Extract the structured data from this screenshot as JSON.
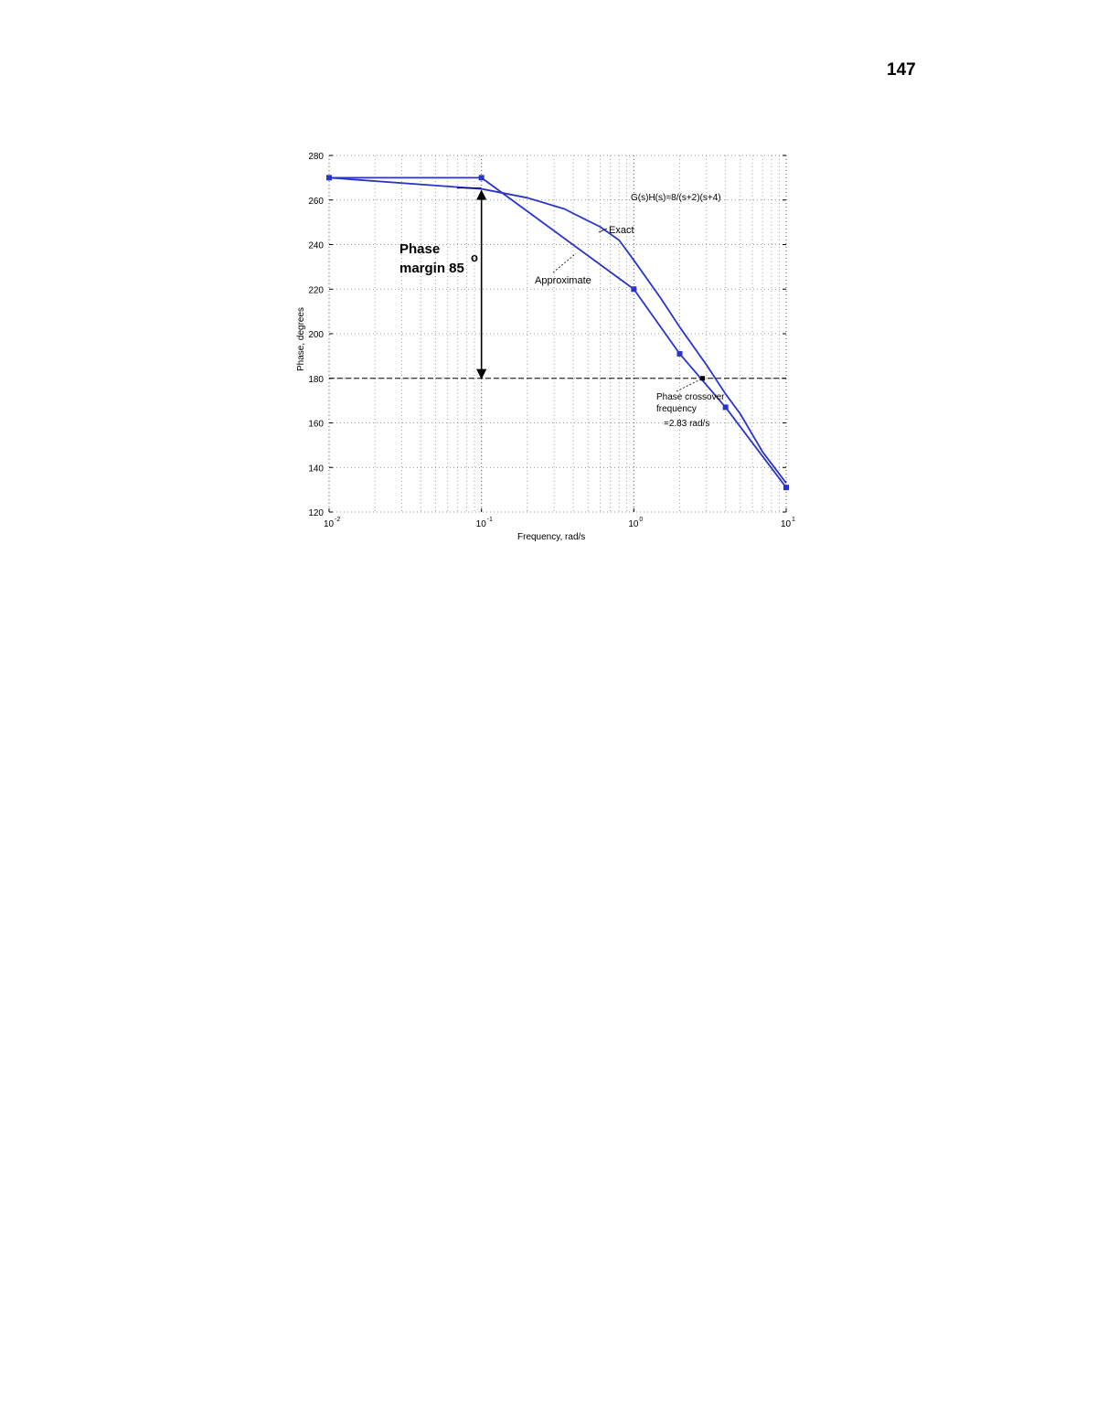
{
  "page": {
    "number": "147"
  },
  "chart_data": {
    "type": "line",
    "title": "",
    "xlabel": "Frequency, rad/s",
    "ylabel": "Phase, degrees",
    "xscale": "log",
    "xlim": [
      0.01,
      10
    ],
    "ylim": [
      120,
      280
    ],
    "x_ticks": [
      {
        "value": 0.01,
        "base": "10",
        "exp": "-2"
      },
      {
        "value": 0.1,
        "base": "10",
        "exp": "-1"
      },
      {
        "value": 1,
        "base": "10",
        "exp": "0"
      },
      {
        "value": 10,
        "base": "10",
        "exp": "1"
      }
    ],
    "y_ticks": [
      120,
      140,
      160,
      180,
      200,
      220,
      240,
      260,
      280
    ],
    "grid": true,
    "reference_line": {
      "y": 180,
      "style": "dashed"
    },
    "series": [
      {
        "label": "Exact",
        "color": "#2a34c8",
        "x": [
          0.01,
          0.1,
          0.2,
          0.35,
          0.6,
          0.8,
          1,
          1.5,
          2,
          3,
          4,
          5,
          7,
          10
        ],
        "y": [
          270,
          265,
          261,
          256,
          248,
          242,
          233,
          216,
          203,
          186,
          173,
          164,
          147,
          133
        ]
      },
      {
        "label": "Approximate",
        "color": "#2a34c8",
        "x": [
          0.01,
          0.1,
          1,
          2,
          4,
          10
        ],
        "y": [
          270,
          270,
          220,
          191,
          167,
          131
        ],
        "markers": true
      }
    ],
    "annotations": {
      "transfer_function": "G(s)H(s)=8/(s+2)(s+4)",
      "exact_label": "Exact",
      "approx_label": "Approximate",
      "phase_margin_line1": "Phase",
      "phase_margin_line2": "margin 85",
      "phase_margin_degree": "o",
      "crossover_line1": "Phase crossover",
      "crossover_line2": "frequency",
      "crossover_line3": "=2.83 rad/s",
      "crossover_frequency": 2.83
    }
  }
}
